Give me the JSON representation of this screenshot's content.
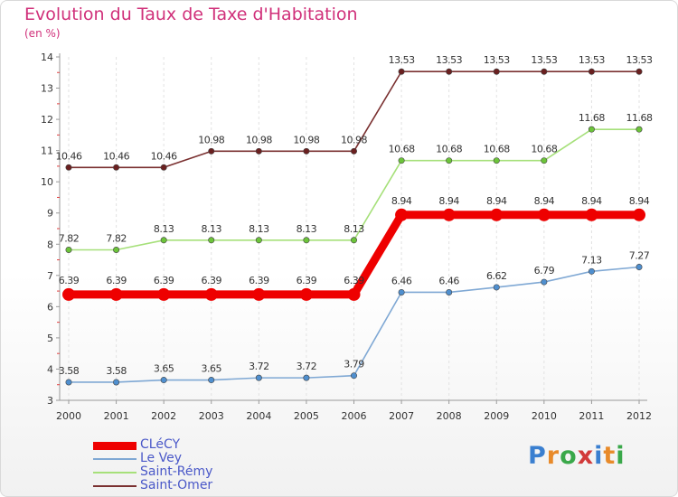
{
  "header": {
    "title": "Evolution du Taux de Taxe d'Habitation",
    "unit": "(en %)"
  },
  "logo": {
    "letters": [
      "P",
      "r",
      "o",
      "x",
      "i",
      "t",
      "i"
    ],
    "colors": [
      "#3a7fd0",
      "#e88a2a",
      "#3aa84a",
      "#d23a3a",
      "#3a7fd0",
      "#e88a2a",
      "#3aa84a"
    ]
  },
  "chart_data": {
    "type": "line",
    "title": "Evolution du Taux de Taxe d'Habitation",
    "subtitle": "(en %)",
    "x": [
      "2000",
      "2001",
      "2002",
      "2003",
      "2004",
      "2005",
      "2006",
      "2007",
      "2008",
      "2009",
      "2010",
      "2011",
      "2012"
    ],
    "ylim": [
      3,
      14
    ],
    "yticks": [
      3,
      4,
      5,
      6,
      7,
      8,
      9,
      10,
      11,
      12,
      13,
      14
    ],
    "legend_position": "bottom-left",
    "series": [
      {
        "name": "CLéCY",
        "color": "#ee0000",
        "emphasis": true,
        "values": [
          6.39,
          6.39,
          6.39,
          6.39,
          6.39,
          6.39,
          6.39,
          8.94,
          8.94,
          8.94,
          8.94,
          8.94,
          8.94
        ],
        "labels": [
          "6.39",
          "6.39",
          "6.39",
          "6.39",
          "6.39",
          "6.39",
          "6.39",
          "8.94",
          "8.94",
          "8.94",
          "8.94",
          "8.94",
          "8.94"
        ]
      },
      {
        "name": "Le Vey",
        "color": "#7fa8d4",
        "marker_color": "#4f8fcf",
        "values": [
          3.58,
          3.58,
          3.65,
          3.65,
          3.72,
          3.72,
          3.79,
          6.46,
          6.46,
          6.62,
          6.79,
          7.13,
          7.27
        ],
        "labels": [
          "3.58",
          "3.58",
          "3.65",
          "3.65",
          "3.72",
          "3.72",
          "3.79",
          "6.46",
          "6.46",
          "6.62",
          "6.79",
          "7.13",
          "7.27"
        ]
      },
      {
        "name": "Saint-Rémy",
        "color": "#a6e07a",
        "marker_color": "#6cc43a",
        "values": [
          7.82,
          7.82,
          8.13,
          8.13,
          8.13,
          8.13,
          8.13,
          10.68,
          10.68,
          10.68,
          10.68,
          11.68,
          11.68
        ],
        "labels": [
          "7.82",
          "7.82",
          "8.13",
          "8.13",
          "8.13",
          "8.13",
          "8.13",
          "10.68",
          "10.68",
          "10.68",
          "10.68",
          "11.68",
          "11.68"
        ]
      },
      {
        "name": "Saint-Omer",
        "color": "#7a3030",
        "marker_color": "#6a2020",
        "values": [
          10.46,
          10.46,
          10.46,
          10.98,
          10.98,
          10.98,
          10.98,
          13.53,
          13.53,
          13.53,
          13.53,
          13.53,
          13.53
        ],
        "labels": [
          "10.46",
          "10.46",
          "10.46",
          "10.98",
          "10.98",
          "10.98",
          "10.98",
          "13.53",
          "13.53",
          "13.53",
          "13.53",
          "13.53",
          "13.53"
        ]
      }
    ]
  }
}
